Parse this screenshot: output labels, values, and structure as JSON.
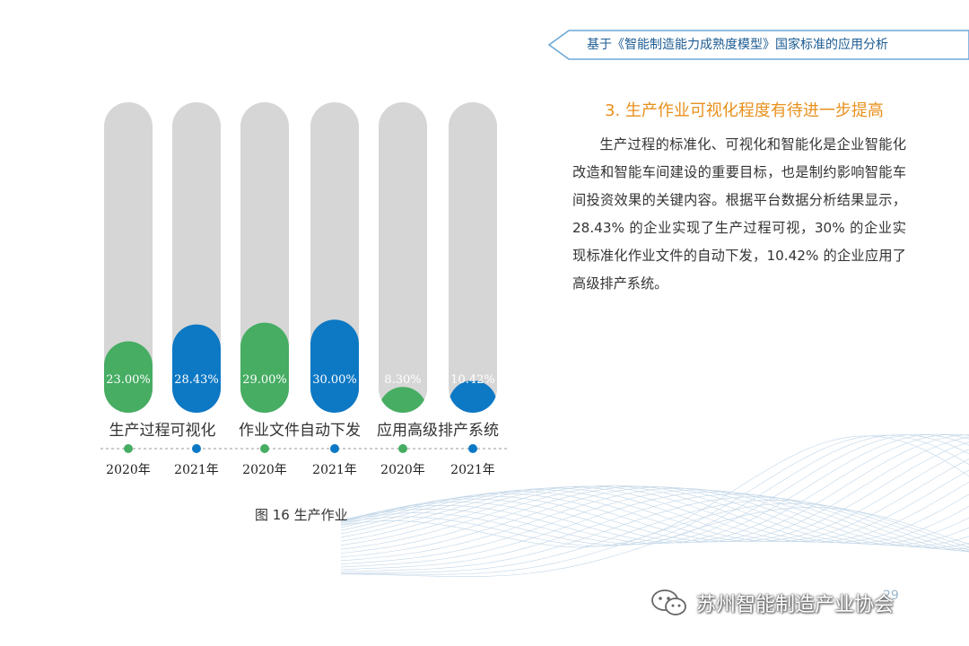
{
  "header": {
    "title": "基于《智能制造能力成熟度模型》国家标准的应用分析"
  },
  "section": {
    "heading": "3. 生产作业可视化程度有待进一步提高",
    "paragraph": "生产过程的标准化、可视化和智能化是企业智能化改造和智能车间建设的重要目标，也是制约影响智能车间投资效果的关键内容。根据平台数据分析结果显示，28.43% 的企业实现了生产过程可视，30% 的企业实现标准化作业文件的自动下发，10.42% 的企业应用了高级排产系统。"
  },
  "figure": {
    "caption": "图 16  生产作业"
  },
  "page_number": "29",
  "watermark": {
    "text": "苏州智能制造产业协会",
    "icon": "wechat-icon"
  },
  "colors": {
    "green": "#46ad63",
    "blue": "#0d78c4",
    "track": "#d6d6d6",
    "accent": "#e8901c",
    "header": "#1d5c93"
  },
  "chart_data": {
    "type": "bar",
    "ylim": [
      0,
      100
    ],
    "groups": [
      "生产过程可视化",
      "作业文件自动下发",
      "应用高级排产系统"
    ],
    "bars": [
      {
        "group": "生产过程可视化",
        "year": "2020年",
        "value": 23.0,
        "label": "23.00%",
        "color": "green"
      },
      {
        "group": "生产过程可视化",
        "year": "2021年",
        "value": 28.43,
        "label": "28.43%",
        "color": "blue"
      },
      {
        "group": "作业文件自动下发",
        "year": "2020年",
        "value": 29.0,
        "label": "29.00%",
        "color": "green"
      },
      {
        "group": "作业文件自动下发",
        "year": "2021年",
        "value": 30.0,
        "label": "30.00%",
        "color": "blue"
      },
      {
        "group": "应用高级排产系统",
        "year": "2020年",
        "value": 8.3,
        "label": "8.30%",
        "color": "green"
      },
      {
        "group": "应用高级排产系统",
        "year": "2021年",
        "value": 10.42,
        "label": "10.42%",
        "color": "blue"
      }
    ]
  }
}
